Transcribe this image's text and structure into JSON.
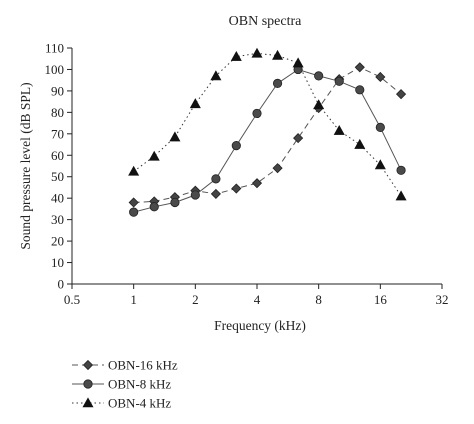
{
  "chart_data": {
    "type": "line",
    "title": "OBN spectra",
    "xlabel": "Frequency (kHz)",
    "ylabel": "Sound pressure level (dB SPL)",
    "x_scale": "log2",
    "xlim": [
      0.5,
      32
    ],
    "ylim": [
      0,
      110
    ],
    "x_ticks": [
      0.5,
      1,
      2,
      4,
      8,
      16,
      32
    ],
    "x_tick_labels": [
      "0.5",
      "1",
      "2",
      "4",
      "8",
      "16",
      "32"
    ],
    "y_ticks": [
      0,
      10,
      20,
      30,
      40,
      50,
      60,
      70,
      80,
      90,
      100,
      110
    ],
    "y_tick_labels": [
      "0",
      "10",
      "20",
      "30",
      "40",
      "50",
      "60",
      "70",
      "80",
      "90",
      "100",
      "110"
    ],
    "grid": false,
    "legend_position": "bottom-left",
    "series": [
      {
        "name": "OBN-16 kHz",
        "marker": "diamond",
        "line_style": "dashed",
        "color": "#555555",
        "x": [
          1,
          1.26,
          1.59,
          2,
          2.52,
          3.17,
          4,
          5.04,
          6.35,
          8,
          10.08,
          12.7,
          16,
          20.2
        ],
        "y": [
          38,
          38.5,
          40.5,
          43.5,
          42,
          44.5,
          47,
          54,
          68,
          82,
          95.5,
          101,
          96.5,
          88.5
        ]
      },
      {
        "name": "OBN-8 kHz",
        "marker": "circle",
        "line_style": "solid",
        "color": "#555555",
        "x": [
          1,
          1.26,
          1.59,
          2,
          2.52,
          3.17,
          4,
          5.04,
          6.35,
          8,
          10.08,
          12.7,
          16,
          20.2
        ],
        "y": [
          33.5,
          36,
          38,
          41.5,
          49,
          64.5,
          79.5,
          93.5,
          100,
          97,
          94.5,
          90.5,
          73,
          53
        ]
      },
      {
        "name": "OBN-4 kHz",
        "marker": "triangle",
        "line_style": "dotted",
        "color": "#333333",
        "x": [
          1,
          1.26,
          1.59,
          2,
          2.52,
          3.17,
          4,
          5.04,
          6.35,
          8,
          10.08,
          12.7,
          16,
          20.2
        ],
        "y": [
          52.5,
          59.5,
          68.5,
          84,
          97,
          106,
          107.5,
          106.5,
          103,
          83.5,
          71.5,
          65,
          55.5,
          41
        ]
      }
    ]
  }
}
